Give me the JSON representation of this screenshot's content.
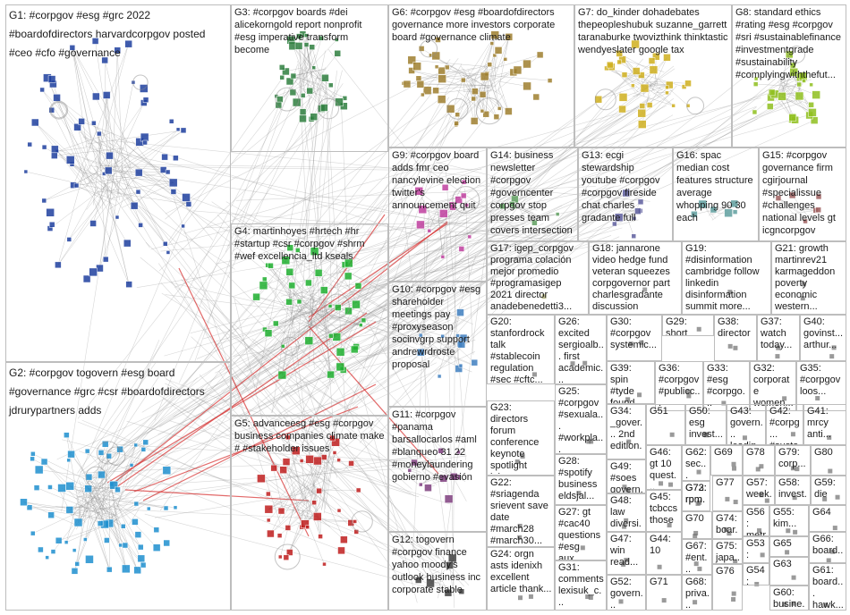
{
  "diagram": {
    "type": "network-graph",
    "colors": {
      "edge": "#8c8c8c",
      "edge_highlight": "#d62a2a",
      "box_border": "#bdbdbd",
      "background": "#ffffff"
    },
    "clusters": [
      {
        "id": "G1",
        "label": "G1: #corpgov #esg #grc 2022 #boardofdirectors harvardcorpgov posted #ceo #cfo #governance",
        "node_color": "#1f3f9f"
      },
      {
        "id": "G2",
        "label": "G2: #corpgov togovern #esg board #governance #grc #csr #boardofdirectors jdrurypartners adds",
        "node_color": "#1f8fcf"
      },
      {
        "id": "G3",
        "label": "G3: #corpgov boards #dei alicekorngold report nonprofit #esg imperative transform become",
        "node_color": "#2f7f3f"
      },
      {
        "id": "G4",
        "label": "G4: martinhoyes #hrtech #hr #startup #csr #corpgov #shrm #wef excellencia_ltd kseals",
        "node_color": "#1faf2f"
      },
      {
        "id": "G5",
        "label": "G5: advanceesg #esg #corpgov business companies climate make # #stakeholder issues",
        "node_color": "#bf1f1f"
      },
      {
        "id": "G6",
        "label": "G6: #corpgov #esg #boardofdirectors governance more investors corporate board #governance climate",
        "node_color": "#9f7f2f"
      },
      {
        "id": "G7",
        "label": "G7: do_kinder dohadebates thepeopleshubuk suzanne_garrett taranaburke twovizthink thinktastic wendyeslater google tax",
        "node_color": "#cfaf1f"
      },
      {
        "id": "G8",
        "label": "G8: standard ethics #rating #esg #corpgov #sri #sustainablefinance #investmentgrade #sustainability #complyingwiththefut...",
        "node_color": "#8fbf1f"
      },
      {
        "id": "G9",
        "label": "G9: #corpgov board adds fmr ceo nancylevine election twitter's announcement quit",
        "node_color": "#bf3f9f"
      },
      {
        "id": "G10",
        "label": "G10: #corpgov #esg shareholder meetings pay #proxyseason socinvgrp support andrewrdroste proposal",
        "node_color": "#3f7fbf"
      },
      {
        "id": "G11",
        "label": "G11: #corpgov #panama barsallocarlos #aml #blanqueo 31 22 #moneylaundering gobierno #evasión",
        "node_color": "#7f3f7f"
      },
      {
        "id": "G12",
        "label": "G12: togovern #corpgov finance yahoo moody's outlook business inc corporate stable",
        "node_color": "#3f3f3f"
      },
      {
        "id": "G13",
        "label": "G13: ecgi stewardship youtube #corpgov #corpgov fireside chat charles gradante full",
        "node_color": "#5f5f9f"
      },
      {
        "id": "G14",
        "label": "G14: business newsletter #corpgov #governcenter corpgov stop presses team covers intersection",
        "node_color": "#5f9f5f"
      },
      {
        "id": "G15",
        "label": "G15: #corpgov governance firm cgirjournal #specialissue #challenges national levels gt icgncorpgov",
        "node_color": "#9f5f5f"
      },
      {
        "id": "G16",
        "label": "G16: spac median cost features structure average whopping 90 30 each",
        "node_color": "#5f9f9f"
      },
      {
        "id": "G17",
        "label": "G17: igep_corpgov programa colación mejor promedio #programasigep 2021 director anadebenedetti3...",
        "node_color": "#9f9f5f"
      },
      {
        "id": "G18",
        "label": "G18: jannarone video hedge fund veteran squeezes corpgovernor part charlesgradante discussion",
        "node_color": "#7f7f7f"
      },
      {
        "id": "G19",
        "label": "G19: #disinformation cambridge follow linkedin disinformation summit more...",
        "node_color": "#6f6f6f"
      },
      {
        "id": "G20",
        "label": "G20: stanfordrock talk #stablecoin regulation #sec #cftc...",
        "node_color": "#6f6f6f"
      },
      {
        "id": "G21",
        "label": "G21: growth martinrev21 karmageddon poverty economic western...",
        "node_color": "#6f6f6f"
      },
      {
        "id": "G22",
        "label": "G22: #sriagenda srievent save date #march28 #march30...",
        "node_color": "#6f6f6f"
      },
      {
        "id": "G23",
        "label": "G23: directors forum conference keynote spotlight join...",
        "node_color": "#6f6f6f"
      },
      {
        "id": "G24",
        "label": "G24: orgn asts idenixh excellent article thank...",
        "node_color": "#6f6f6f"
      },
      {
        "id": "G25",
        "label": "G25: #corpgov #sexuala... #workpla... australia...",
        "node_color": "#6f6f6f"
      },
      {
        "id": "G26",
        "label": "G26: excited sergioalb... first academic...",
        "node_color": "#6f6f6f"
      },
      {
        "id": "G27",
        "label": "G27: gt #cac40 questions #esg aux...",
        "node_color": "#6f6f6f"
      },
      {
        "id": "G28",
        "label": "G28: #spotify business eldsjal...",
        "node_color": "#6f6f6f"
      },
      {
        "id": "G29",
        "label": "G29: short",
        "node_color": "#6f6f6f"
      },
      {
        "id": "G30",
        "label": "G30: #corpgov systemic...",
        "node_color": "#6f6f6f"
      },
      {
        "id": "G31",
        "label": "G31: comments lexisuk_c...",
        "node_color": "#6f6f6f"
      },
      {
        "id": "G32",
        "label": "G32: corporate women...",
        "node_color": "#6f6f6f"
      },
      {
        "id": "G33",
        "label": "G33: #esg #corpgo...",
        "node_color": "#6f6f6f"
      },
      {
        "id": "G34",
        "label": "G34: _gover... 2nd edition...",
        "node_color": "#6f6f6f"
      },
      {
        "id": "G35",
        "label": "G35: #corpgov loos...",
        "node_color": "#6f6f6f"
      },
      {
        "id": "G36",
        "label": "G36: #corpgov #publicc...",
        "node_color": "#6f6f6f"
      },
      {
        "id": "G37",
        "label": "G37: watch today...",
        "node_color": "#6f6f6f"
      },
      {
        "id": "G38",
        "label": "G38: director",
        "node_color": "#6f6f6f"
      },
      {
        "id": "G39",
        "label": "G39: spin #tyde found...",
        "node_color": "#6f6f6f"
      },
      {
        "id": "G40",
        "label": "G40: govinst... arthur...",
        "node_color": "#6f6f6f"
      },
      {
        "id": "G41",
        "label": "G41: mrcy anti...",
        "node_color": "#6f6f6f"
      },
      {
        "id": "G42",
        "label": "G42: #corpg... #susta...",
        "node_color": "#6f6f6f"
      },
      {
        "id": "G43",
        "label": "G43: govern... leadin...",
        "node_color": "#6f6f6f"
      },
      {
        "id": "G44",
        "label": "G44: 10",
        "node_color": "#6f6f6f"
      },
      {
        "id": "G45",
        "label": "G45: tcbccs those",
        "node_color": "#6f6f6f"
      },
      {
        "id": "G46",
        "label": "G46: gt 10 quest...",
        "node_color": "#6f6f6f"
      },
      {
        "id": "G47",
        "label": "G47: win read...",
        "node_color": "#6f6f6f"
      },
      {
        "id": "G48",
        "label": "G48: law diversi...",
        "node_color": "#6f6f6f"
      },
      {
        "id": "G49",
        "label": "G49: #soes govern...",
        "node_color": "#6f6f6f"
      },
      {
        "id": "G50",
        "label": "G50: esg invest...",
        "node_color": "#6f6f6f"
      },
      {
        "id": "G51",
        "label": "G51",
        "node_color": "#6f6f6f"
      },
      {
        "id": "G52",
        "label": "G52: govern... shivan...",
        "node_color": "#6f6f6f"
      },
      {
        "id": "G53",
        "label": "G53: #ah...",
        "node_color": "#6f6f6f"
      },
      {
        "id": "G54",
        "label": "G54: #cor...",
        "node_color": "#6f6f6f"
      },
      {
        "id": "G55",
        "label": "G55: kim...",
        "node_color": "#6f6f6f"
      },
      {
        "id": "G56",
        "label": "G56: metr...",
        "node_color": "#6f6f6f"
      },
      {
        "id": "G57",
        "label": "G57: week...",
        "node_color": "#6f6f6f"
      },
      {
        "id": "G58",
        "label": "G58: invest...",
        "node_color": "#6f6f6f"
      },
      {
        "id": "G59",
        "label": "G59: die",
        "node_color": "#6f6f6f"
      },
      {
        "id": "G60",
        "label": "G60: busine...",
        "node_color": "#6f6f6f"
      },
      {
        "id": "G61",
        "label": "G61: board... hawk...",
        "node_color": "#6f6f6f"
      },
      {
        "id": "G62",
        "label": "G62: sec...",
        "node_color": "#6f6f6f"
      },
      {
        "id": "G63",
        "label": "G63",
        "node_color": "#6f6f6f"
      },
      {
        "id": "G64",
        "label": "G64",
        "node_color": "#6f6f6f"
      },
      {
        "id": "G65",
        "label": "G65",
        "node_color": "#6f6f6f"
      },
      {
        "id": "G66",
        "label": "G66: board...",
        "node_color": "#6f6f6f"
      },
      {
        "id": "G67",
        "label": "G67: #ent...",
        "node_color": "#6f6f6f"
      },
      {
        "id": "G68",
        "label": "G68: priva...",
        "node_color": "#6f6f6f"
      },
      {
        "id": "G69",
        "label": "G69",
        "node_color": "#6f6f6f"
      },
      {
        "id": "G70",
        "label": "G70",
        "node_color": "#6f6f6f"
      },
      {
        "id": "G71",
        "label": "G71",
        "node_color": "#6f6f6f"
      },
      {
        "id": "G72",
        "label": "G72: rpm...",
        "node_color": "#6f6f6f"
      },
      {
        "id": "G73",
        "label": "G73: rpm...",
        "node_color": "#6f6f6f"
      },
      {
        "id": "G74",
        "label": "G74: boar...",
        "node_color": "#6f6f6f"
      },
      {
        "id": "G75",
        "label": "G75: japa...",
        "node_color": "#6f6f6f"
      },
      {
        "id": "G76",
        "label": "G76",
        "node_color": "#6f6f6f"
      },
      {
        "id": "G77",
        "label": "G77",
        "node_color": "#6f6f6f"
      },
      {
        "id": "G78",
        "label": "G78",
        "node_color": "#6f6f6f"
      },
      {
        "id": "G79",
        "label": "G79: corp...",
        "node_color": "#6f6f6f"
      },
      {
        "id": "G80",
        "label": "G80",
        "node_color": "#6f6f6f"
      }
    ]
  }
}
